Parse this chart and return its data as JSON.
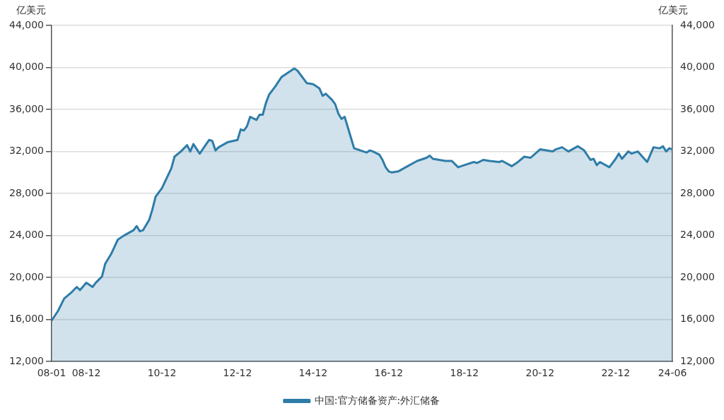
{
  "chart_data": {
    "type": "area",
    "ylabel": "亿美元",
    "y2label": "亿美元",
    "xlim": [
      "2008-01",
      "2024-06"
    ],
    "xticks": [
      {
        "value": "2008-01",
        "label": "08-01"
      },
      {
        "value": "2008-12",
        "label": "08-12"
      },
      {
        "value": "2010-12",
        "label": "10-12"
      },
      {
        "value": "2012-12",
        "label": "12-12"
      },
      {
        "value": "2014-12",
        "label": "14-12"
      },
      {
        "value": "2016-12",
        "label": "16-12"
      },
      {
        "value": "2018-12",
        "label": "18-12"
      },
      {
        "value": "2020-12",
        "label": "20-12"
      },
      {
        "value": "2022-12",
        "label": "22-12"
      },
      {
        "value": "2024-06",
        "label": "24-06"
      }
    ],
    "ylim": [
      12000,
      44000
    ],
    "yticks": [
      {
        "value": 12000,
        "label": "12,000"
      },
      {
        "value": 16000,
        "label": "16,000"
      },
      {
        "value": 20000,
        "label": "20,000"
      },
      {
        "value": 24000,
        "label": "24,000"
      },
      {
        "value": 28000,
        "label": "28,000"
      },
      {
        "value": 32000,
        "label": "32,000"
      },
      {
        "value": 36000,
        "label": "36,000"
      },
      {
        "value": 40000,
        "label": "40,000"
      },
      {
        "value": 44000,
        "label": "44,000"
      }
    ],
    "y2lim": [
      12000,
      44000
    ],
    "y2ticks": [
      {
        "value": 12000,
        "label": "12,000"
      },
      {
        "value": 16000,
        "label": "16,000"
      },
      {
        "value": 20000,
        "label": "20,000"
      },
      {
        "value": 24000,
        "label": "24,000"
      },
      {
        "value": 28000,
        "label": "28,000"
      },
      {
        "value": 32000,
        "label": "32,000"
      },
      {
        "value": 36000,
        "label": "36,000"
      },
      {
        "value": 40000,
        "label": "40,000"
      },
      {
        "value": 44000,
        "label": "44,000"
      }
    ],
    "grid": "y",
    "legend": "bottom",
    "marker": "none",
    "series": [
      {
        "name": "中国:官方储备资产:外汇储备",
        "color": "#2e7ca8",
        "x": [
          "2008-01",
          "2008-03",
          "2008-05",
          "2008-07",
          "2008-09",
          "2008-10",
          "2008-12",
          "2009-02",
          "2009-03",
          "2009-05",
          "2009-06",
          "2009-08",
          "2009-10",
          "2009-12",
          "2010-03",
          "2010-04",
          "2010-05",
          "2010-06",
          "2010-08",
          "2010-09",
          "2010-10",
          "2010-12",
          "2011-03",
          "2011-04",
          "2011-06",
          "2011-08",
          "2011-09",
          "2011-10",
          "2011-12",
          "2012-03",
          "2012-04",
          "2012-05",
          "2012-06",
          "2012-09",
          "2012-12",
          "2013-01",
          "2013-02",
          "2013-03",
          "2013-04",
          "2013-06",
          "2013-07",
          "2013-08",
          "2013-09",
          "2013-10",
          "2013-12",
          "2014-02",
          "2014-04",
          "2014-06",
          "2014-07",
          "2014-09",
          "2014-10",
          "2014-12",
          "2015-02",
          "2015-03",
          "2015-04",
          "2015-06",
          "2015-07",
          "2015-08",
          "2015-09",
          "2015-10",
          "2015-12",
          "2016-01",
          "2016-03",
          "2016-05",
          "2016-06",
          "2016-07",
          "2016-09",
          "2016-10",
          "2016-11",
          "2016-12",
          "2017-01",
          "2017-03",
          "2017-06",
          "2017-09",
          "2017-12",
          "2018-01",
          "2018-02",
          "2018-04",
          "2018-06",
          "2018-08",
          "2018-10",
          "2018-12",
          "2019-03",
          "2019-04",
          "2019-06",
          "2019-08",
          "2019-11",
          "2019-12",
          "2020-03",
          "2020-05",
          "2020-07",
          "2020-09",
          "2020-12",
          "2021-02",
          "2021-04",
          "2021-05",
          "2021-07",
          "2021-09",
          "2021-12",
          "2022-02",
          "2022-04",
          "2022-05",
          "2022-06",
          "2022-07",
          "2022-10",
          "2022-12",
          "2023-01",
          "2023-02",
          "2023-04",
          "2023-05",
          "2023-07",
          "2023-10",
          "2023-11",
          "2023-12",
          "2024-02",
          "2024-03",
          "2024-04",
          "2024-05",
          "2024-06"
        ],
        "values": [
          15900,
          16800,
          18000,
          18500,
          19100,
          18800,
          19500,
          19100,
          19500,
          20100,
          21300,
          22300,
          23600,
          24000,
          24500,
          24900,
          24400,
          24500,
          25500,
          26500,
          27700,
          28500,
          30400,
          31500,
          32000,
          32600,
          32000,
          32700,
          31800,
          33100,
          33000,
          32100,
          32400,
          32900,
          33100,
          34100,
          34000,
          34400,
          35300,
          35000,
          35500,
          35500,
          36600,
          37400,
          38200,
          39100,
          39500,
          39900,
          39700,
          38900,
          38500,
          38400,
          38000,
          37300,
          37500,
          36900,
          36500,
          35600,
          35100,
          35300,
          33300,
          32300,
          32100,
          31900,
          32100,
          32000,
          31700,
          31200,
          30500,
          30100,
          30000,
          30100,
          30600,
          31100,
          31400,
          31600,
          31300,
          31200,
          31100,
          31100,
          30500,
          30700,
          31000,
          30900,
          31200,
          31100,
          31000,
          31100,
          30600,
          31000,
          31500,
          31400,
          32200,
          32100,
          32000,
          32200,
          32400,
          32000,
          32500,
          32100,
          31200,
          31300,
          30700,
          31000,
          30500,
          31300,
          31800,
          31300,
          32000,
          31800,
          32000,
          31000,
          31700,
          32400,
          32300,
          32500,
          32000,
          32300,
          32200
        ]
      }
    ]
  }
}
